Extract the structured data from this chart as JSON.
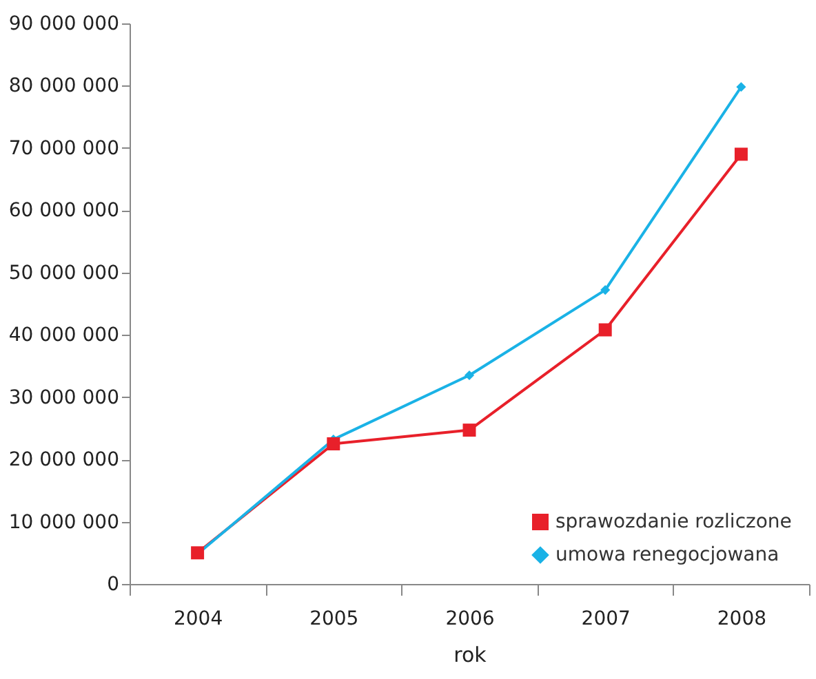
{
  "chart_data": {
    "type": "line",
    "xlabel": "rok",
    "categories": [
      "2004",
      "2005",
      "2006",
      "2007",
      "2008"
    ],
    "series": [
      {
        "name": "sprawozdanie rozliczone",
        "color": "#e8202a",
        "marker": "square",
        "values": [
          5000000,
          22500000,
          24700000,
          40800000,
          69000000
        ]
      },
      {
        "name": "umowa renegocjowana",
        "color": "#1ab2e6",
        "marker": "diamond",
        "values": [
          4800000,
          23200000,
          33500000,
          47200000,
          79800000
        ]
      }
    ],
    "ylim": [
      0,
      90000000
    ],
    "yticks": [
      {
        "value": 0,
        "label": "0"
      },
      {
        "value": 10000000,
        "label": "10 000 000"
      },
      {
        "value": 20000000,
        "label": "20 000 000"
      },
      {
        "value": 30000000,
        "label": "30 000 000"
      },
      {
        "value": 40000000,
        "label": "40 000 000"
      },
      {
        "value": 50000000,
        "label": "50 000 000"
      },
      {
        "value": 60000000,
        "label": "60 000 000"
      },
      {
        "value": 70000000,
        "label": "70 000 000"
      },
      {
        "value": 80000000,
        "label": "80 000 000"
      },
      {
        "value": 90000000,
        "label": "90 000 000"
      }
    ],
    "grid": false,
    "legend": "bottom right"
  }
}
